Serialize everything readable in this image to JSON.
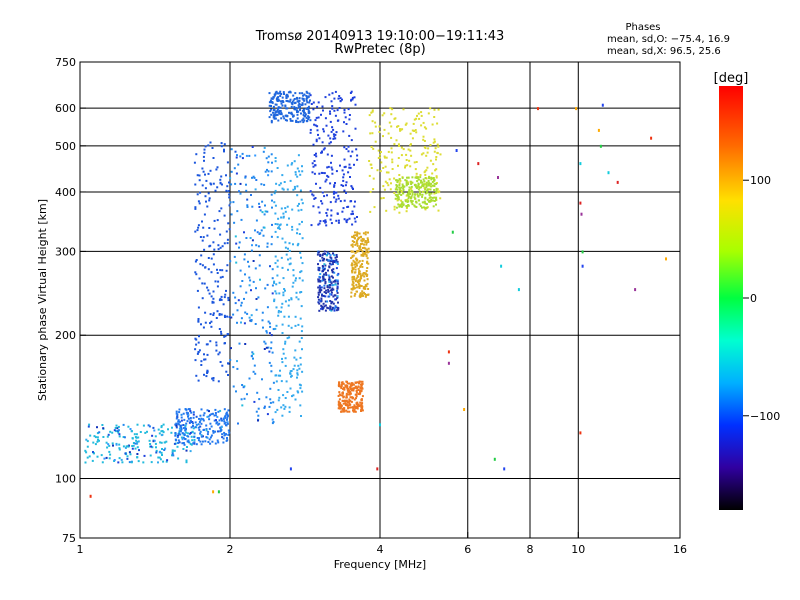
{
  "chart_data": {
    "type": "scatter",
    "title": "Tromsø 20140913 19:10:00−19:11:43",
    "subtitle": "RwPretec (8p)",
    "xlabel": "Frequency [MHz]",
    "ylabel": "Stationary phase Virtual Height [km]",
    "x_scale": "log",
    "y_scale": "log",
    "xlim": [
      1,
      16
    ],
    "ylim": [
      75,
      750
    ],
    "x_ticks": [
      1,
      2,
      4,
      6,
      8,
      10,
      16
    ],
    "x_tick_labels": [
      "1",
      "2",
      "4",
      "6",
      "8",
      "10",
      "16"
    ],
    "y_ticks": [
      75,
      100,
      200,
      300,
      400,
      500,
      600,
      750
    ],
    "y_tick_labels": [
      "75",
      "100",
      "200",
      "300",
      "400",
      "500",
      "600",
      "750"
    ],
    "grid": true,
    "stats": {
      "heading": "Phases",
      "line_o": "mean, sd,O: −75.4, 16.9",
      "line_x": "mean, sd,X: 96.5, 25.6"
    },
    "colorbar": {
      "label": "[deg]",
      "range": [
        -180,
        180
      ],
      "tick_labels": [
        "100",
        "0",
        "−100"
      ],
      "tick_values": [
        100,
        0,
        -100
      ]
    },
    "clusters": [
      {
        "x_range": [
          1.02,
          1.7
        ],
        "y_range": [
          108,
          130
        ],
        "color": "#22bbdd"
      },
      {
        "x_range": [
          1.55,
          2.0
        ],
        "y_range": [
          118,
          140
        ],
        "color": "#2277ee"
      },
      {
        "x_range": [
          1.7,
          2.0
        ],
        "y_range": [
          160,
          510
        ],
        "color": "#1a55dd"
      },
      {
        "x_range": [
          2.0,
          2.45
        ],
        "y_range": [
          130,
          500
        ],
        "color": "#2288ee"
      },
      {
        "x_range": [
          2.45,
          2.8
        ],
        "y_range": [
          135,
          480
        ],
        "color": "#33aaee"
      },
      {
        "x_range": [
          2.4,
          2.9
        ],
        "y_range": [
          560,
          650
        ],
        "color": "#1f66dd"
      },
      {
        "x_range": [
          2.9,
          3.6
        ],
        "y_range": [
          340,
          650
        ],
        "color": "#1e40dd"
      },
      {
        "x_range": [
          3.0,
          3.3
        ],
        "y_range": [
          225,
          300
        ],
        "color": "#2233aa"
      },
      {
        "x_range": [
          3.3,
          3.7
        ],
        "y_range": [
          138,
          160
        ],
        "color": "#ee7722"
      },
      {
        "x_range": [
          3.5,
          3.8
        ],
        "y_range": [
          240,
          330
        ],
        "color": "#ddaa22"
      },
      {
        "x_range": [
          3.8,
          5.3
        ],
        "y_range": [
          360,
          600
        ],
        "color": "#dddd33"
      },
      {
        "x_range": [
          4.3,
          5.2
        ],
        "y_range": [
          370,
          430
        ],
        "color": "#aadd33"
      }
    ],
    "sparse_points": [
      {
        "x": 1.05,
        "y": 92
      },
      {
        "x": 1.85,
        "y": 94
      },
      {
        "x": 1.9,
        "y": 94
      },
      {
        "x": 2.65,
        "y": 105
      },
      {
        "x": 4.0,
        "y": 130
      },
      {
        "x": 3.95,
        "y": 105
      },
      {
        "x": 5.5,
        "y": 175
      },
      {
        "x": 5.5,
        "y": 185
      },
      {
        "x": 5.9,
        "y": 140
      },
      {
        "x": 6.8,
        "y": 110
      },
      {
        "x": 7.1,
        "y": 105
      },
      {
        "x": 7.6,
        "y": 250
      },
      {
        "x": 6.3,
        "y": 460
      },
      {
        "x": 6.9,
        "y": 430
      },
      {
        "x": 8.3,
        "y": 600
      },
      {
        "x": 9.9,
        "y": 600
      },
      {
        "x": 10.2,
        "y": 300
      },
      {
        "x": 10.2,
        "y": 280
      },
      {
        "x": 10.1,
        "y": 460
      },
      {
        "x": 10.1,
        "y": 380
      },
      {
        "x": 10.15,
        "y": 360
      },
      {
        "x": 10.1,
        "y": 125
      },
      {
        "x": 11.0,
        "y": 540
      },
      {
        "x": 11.1,
        "y": 500
      },
      {
        "x": 11.2,
        "y": 610
      },
      {
        "x": 11.5,
        "y": 440
      },
      {
        "x": 12.0,
        "y": 420
      },
      {
        "x": 13.0,
        "y": 250
      },
      {
        "x": 14.0,
        "y": 520
      },
      {
        "x": 15.0,
        "y": 290
      },
      {
        "x": 5.6,
        "y": 330
      },
      {
        "x": 5.7,
        "y": 490
      },
      {
        "x": 7.0,
        "y": 280
      }
    ]
  }
}
